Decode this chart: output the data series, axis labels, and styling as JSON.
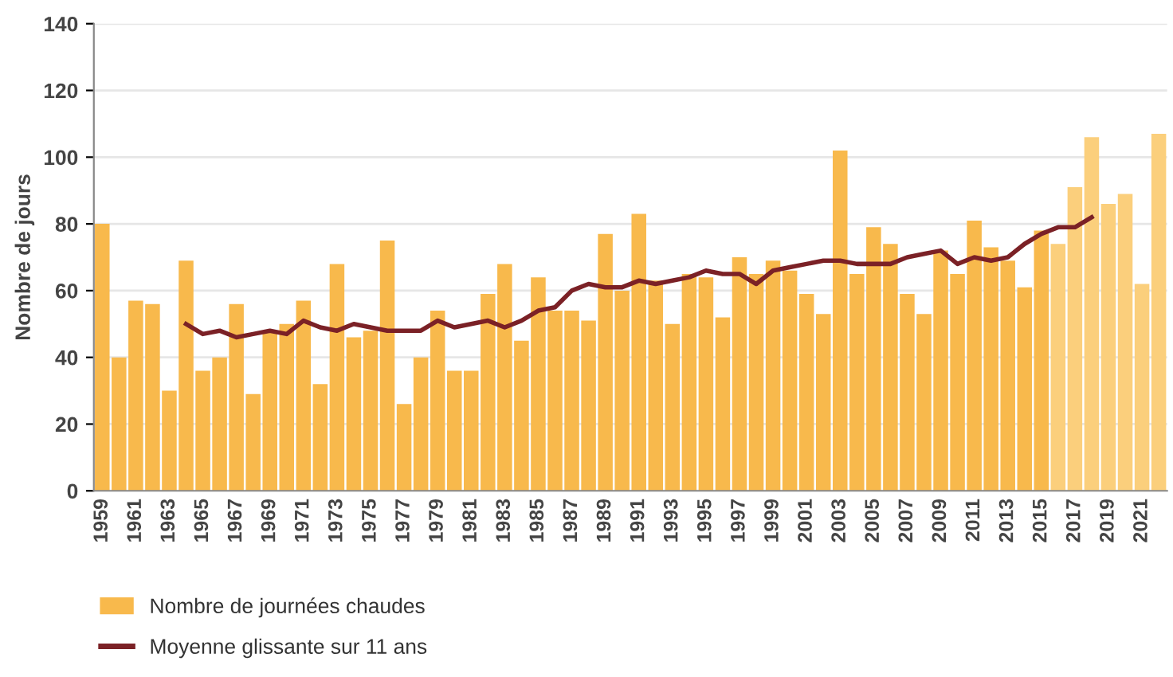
{
  "chart_data": {
    "type": "bar",
    "ylabel": "Nombre de jours",
    "categories": [
      "1959",
      null,
      "1961",
      null,
      "1963",
      null,
      "1965",
      null,
      "1967",
      null,
      "1969",
      null,
      "1971",
      null,
      "1973",
      null,
      "1975",
      null,
      "1977",
      null,
      "1979",
      null,
      "1981",
      null,
      "1983",
      null,
      "1985",
      null,
      "1987",
      null,
      "1989",
      null,
      "1991",
      null,
      "1993",
      null,
      "1995",
      null,
      "1997",
      null,
      "1999",
      null,
      "2001",
      null,
      "2003",
      null,
      "2005",
      null,
      "2007",
      null,
      "2009",
      null,
      "2011",
      null,
      "2013",
      null,
      "2015",
      null,
      "2017",
      null,
      "2019",
      null,
      "2021",
      null
    ],
    "series": [
      {
        "name": "Nombre de journées chaudes",
        "color": "#f8b94c",
        "colors": [
          "#f8b94c",
          "#f8b94c",
          "#f8b94c",
          "#f8b94c",
          "#f8b94c",
          "#f8b94c",
          "#f8b94c",
          "#f8b94c",
          "#f8b94c",
          "#f8b94c",
          "#f8b94c",
          "#f8b94c",
          "#f8b94c",
          "#f8b94c",
          "#f8b94c",
          "#f8b94c",
          "#f8b94c",
          "#f8b94c",
          "#f8b94c",
          "#f8b94c",
          "#f8b94c",
          "#f8b94c",
          "#f8b94c",
          "#f8b94c",
          "#f8b94c",
          "#f8b94c",
          "#f8b94c",
          "#f8b94c",
          "#f8b94c",
          "#f8b94c",
          "#f8b94c",
          "#f8b94c",
          "#f8b94c",
          "#f8b94c",
          "#f8b94c",
          "#f8b94c",
          "#f8b94c",
          "#f8b94c",
          "#f8b94c",
          "#f8b94c",
          "#f8b94c",
          "#f8b94c",
          "#f8b94c",
          "#f8b94c",
          "#f8b94c",
          "#f8b94c",
          "#f8b94c",
          "#f8b94c",
          "#f8b94c",
          "#f8b94c",
          "#f8b94c",
          "#f8b94c",
          "#f8b94c",
          "#f8b94c",
          "#f8b94c",
          "#f8b94c",
          "#f8b94c",
          "#fbcf7c",
          "#fbcf7c",
          "#fbcf7c",
          "#fbcf7c",
          "#fbcf7c",
          "#fbcf7c",
          "#fbcf7c"
        ],
        "values": [
          80,
          40,
          57,
          56,
          30,
          69,
          36,
          40,
          56,
          29,
          48,
          50,
          57,
          32,
          68,
          46,
          48,
          75,
          26,
          40,
          54,
          36,
          36,
          59,
          68,
          45,
          64,
          54,
          54,
          51,
          77,
          60,
          83,
          63,
          50,
          65,
          64,
          52,
          70,
          65,
          69,
          66,
          59,
          53,
          102,
          65,
          79,
          74,
          59,
          53,
          72,
          65,
          81,
          73,
          69,
          61,
          78,
          74,
          91,
          106,
          86,
          89,
          62,
          107
        ]
      },
      {
        "name": "Moyenne glissante sur 11 ans",
        "type": "line",
        "color": "#7b2126",
        "line_style": "solid",
        "values": [
          null,
          null,
          null,
          null,
          null,
          50,
          47,
          48,
          46,
          47,
          48,
          47,
          51,
          49,
          48,
          50,
          49,
          48,
          48,
          48,
          51,
          49,
          50,
          51,
          49,
          51,
          54,
          55,
          60,
          62,
          61,
          61,
          63,
          62,
          63,
          64,
          66,
          65,
          65,
          62,
          66,
          67,
          68,
          69,
          69,
          68,
          68,
          68,
          70,
          71,
          72,
          68,
          70,
          69,
          70,
          74,
          77,
          79,
          79,
          82,
          null,
          null,
          null,
          null
        ]
      }
    ],
    "ylim": [
      0,
      140
    ],
    "yticks": [
      0,
      20,
      40,
      60,
      80,
      100,
      120,
      140
    ],
    "grid": "y",
    "legend": "bottom left"
  }
}
